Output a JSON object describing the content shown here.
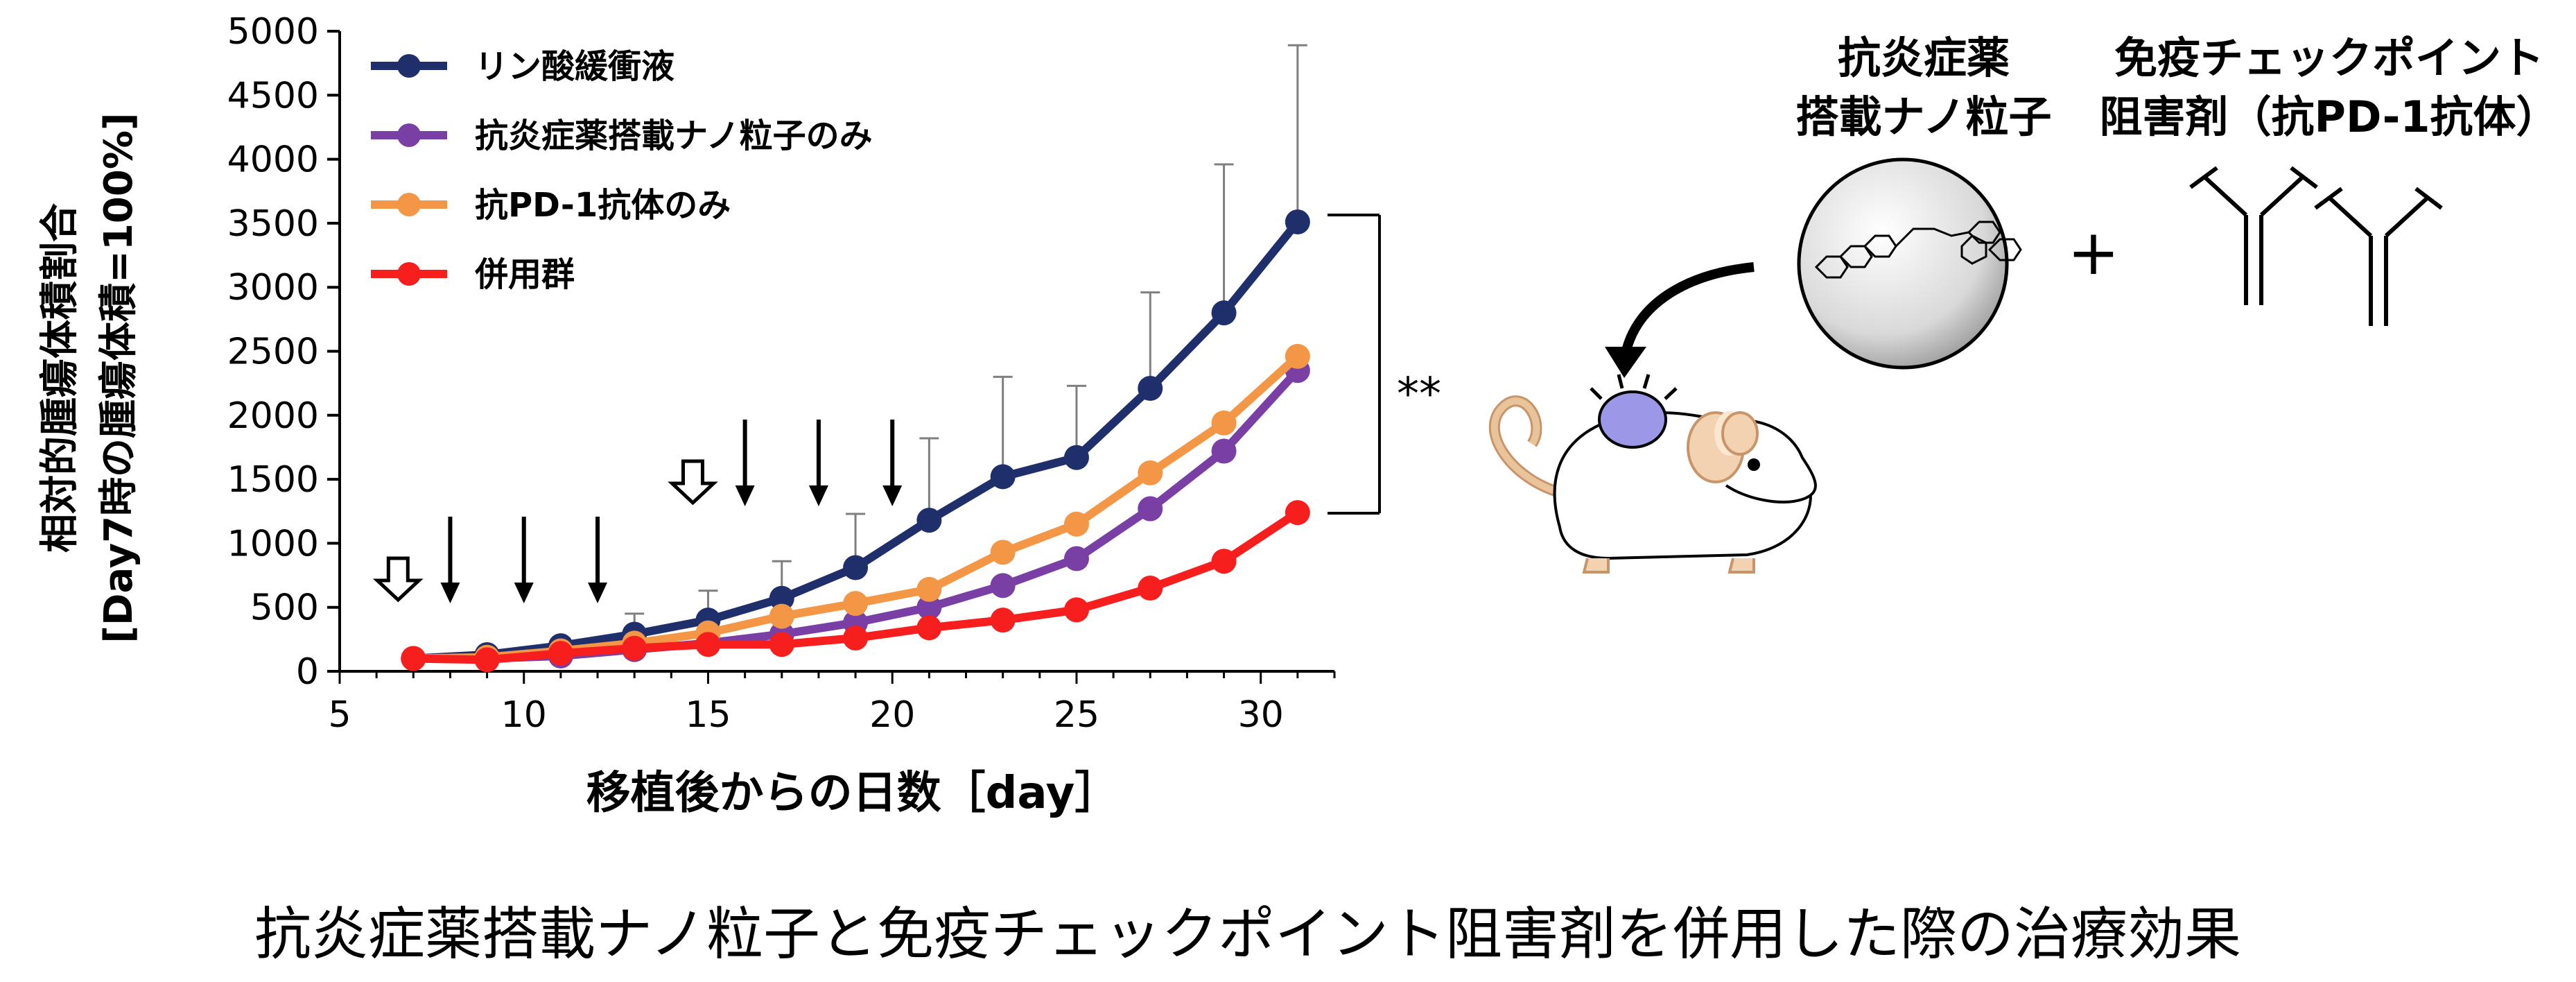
{
  "chart_data": {
    "type": "line",
    "ylabel_line1": "相対的腫瘍体積割合",
    "ylabel_line2": "[Day7時の腫瘍体積=100%]",
    "xlabel": "移植後からの日数［day］",
    "xlim": [
      5,
      32
    ],
    "ylim": [
      0,
      5000
    ],
    "xticks": [
      5,
      10,
      15,
      20,
      25,
      30
    ],
    "yticks": [
      0,
      500,
      1000,
      1500,
      2000,
      2500,
      3000,
      3500,
      4000,
      4500,
      5000
    ],
    "legend_position": "top-left",
    "x": [
      7,
      9,
      11,
      13,
      15,
      17,
      19,
      21,
      23,
      25,
      27,
      29,
      31
    ],
    "series": [
      {
        "name": "リン酸緩衝液",
        "color": "#1f2f6b",
        "values": [
          100,
          130,
          200,
          290,
          400,
          570,
          810,
          1180,
          1520,
          1670,
          2210,
          2800,
          3510
        ],
        "errors": [
          0,
          0,
          0,
          160,
          230,
          290,
          420,
          640,
          780,
          560,
          750,
          1160,
          1380
        ]
      },
      {
        "name": "抗炎症薬搭載ナノ粒子のみ",
        "color": "#7a3fa5",
        "values": [
          100,
          100,
          120,
          170,
          220,
          290,
          380,
          500,
          670,
          880,
          1270,
          1720,
          2350
        ],
        "errors": [
          0,
          0,
          0,
          0,
          0,
          0,
          0,
          0,
          0,
          0,
          0,
          0,
          0
        ]
      },
      {
        "name": "抗PD-1抗体のみ",
        "color": "#f39645",
        "values": [
          100,
          110,
          160,
          220,
          300,
          430,
          530,
          640,
          930,
          1150,
          1550,
          1940,
          2460
        ],
        "errors": [
          0,
          0,
          0,
          0,
          0,
          0,
          0,
          0,
          0,
          0,
          0,
          0,
          0
        ]
      },
      {
        "name": "併用群",
        "color": "#f71e1e",
        "values": [
          100,
          90,
          140,
          180,
          210,
          210,
          260,
          340,
          400,
          480,
          650,
          860,
          1240
        ],
        "errors": [
          0,
          0,
          0,
          0,
          0,
          0,
          0,
          0,
          0,
          0,
          0,
          0,
          0
        ]
      }
    ],
    "nanoparticle_dose_days": [
      7,
      15
    ],
    "antibody_dose_days": [
      8,
      10,
      12,
      16,
      18,
      20
    ],
    "significance": "**"
  },
  "labels": {
    "nanoparticle_line1": "抗炎症薬",
    "nanoparticle_line2": "搭載ナノ粒子",
    "inhibitor_line1": "免疫チェックポイント",
    "inhibitor_line2": "阻害剤（抗PD-1抗体）",
    "plus": "+",
    "caption": "抗炎症薬搭載ナノ粒子と免疫チェックポイント阻害剤を併用した際の治療効果"
  }
}
